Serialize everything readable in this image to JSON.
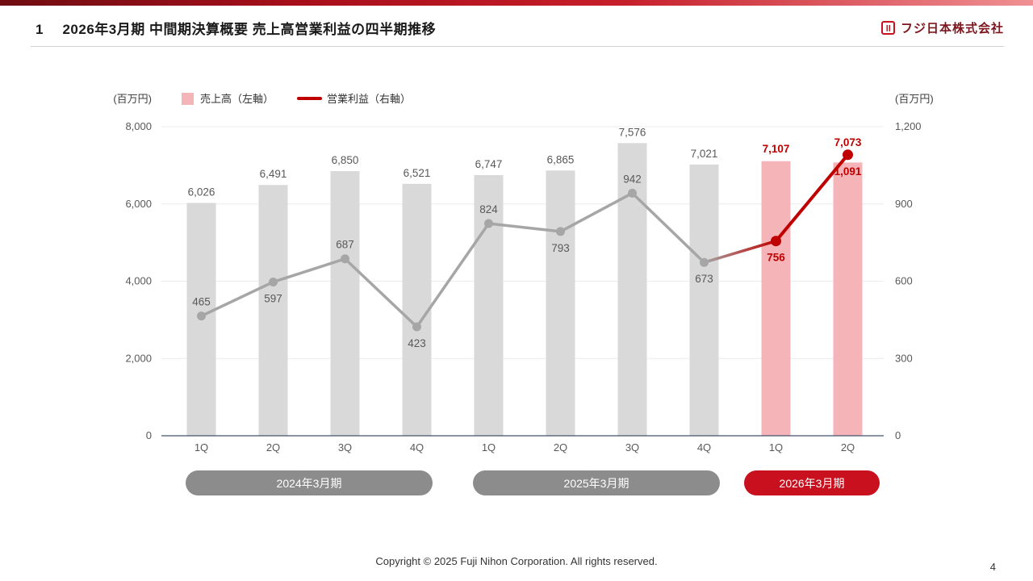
{
  "header": {
    "number": "1",
    "title": "2026年3月期 中間期決算概要 売上高営業利益の四半期推移",
    "company": "フジ日本株式会社"
  },
  "footer": {
    "copyright": "Copyright © 2025 Fuji Nihon Corporation.  All rights reserved.",
    "page_number": "4"
  },
  "chart_data": {
    "type": "bar+line",
    "categories": [
      "1Q",
      "2Q",
      "3Q",
      "4Q",
      "1Q",
      "2Q",
      "3Q",
      "4Q",
      "1Q",
      "2Q"
    ],
    "series": [
      {
        "name": "売上高（左軸）",
        "type": "bar",
        "axis": "left",
        "values": [
          6026,
          6491,
          6850,
          6521,
          6747,
          6865,
          7576,
          7021,
          7107,
          7073
        ]
      },
      {
        "name": "営業利益（右軸）",
        "type": "line",
        "axis": "right",
        "values": [
          465,
          597,
          687,
          423,
          824,
          793,
          942,
          673,
          756,
          1091
        ]
      }
    ],
    "highlight_from_index": 8,
    "line_label_positions": [
      "above",
      "below",
      "above",
      "below",
      "above",
      "below",
      "above",
      "below",
      "below",
      "below"
    ],
    "left_axis": {
      "unit": "(百万円)",
      "ticks": [
        0,
        2000,
        4000,
        6000,
        8000
      ],
      "max": 8000
    },
    "right_axis": {
      "unit": "(百万円)",
      "ticks": [
        0,
        300,
        600,
        900,
        1200
      ],
      "max": 1200
    },
    "periods": [
      {
        "label": "2024年3月期",
        "span": 4,
        "color": "#8c8c8c"
      },
      {
        "label": "2025年3月期",
        "span": 4,
        "color": "#8c8c8c"
      },
      {
        "label": "2026年3月期",
        "span": 2,
        "color": "#c8101e"
      }
    ],
    "colors": {
      "bar": "#d9d9d9",
      "bar_highlight": "#f5b4b8",
      "line": "#a6a6a6",
      "line_highlight": "#c00000",
      "value_label": "#595959",
      "value_label_highlight": "#c00000",
      "baseline": "#44546a",
      "grid": "#ececec"
    },
    "legend_position": "top-left",
    "grid": true
  }
}
